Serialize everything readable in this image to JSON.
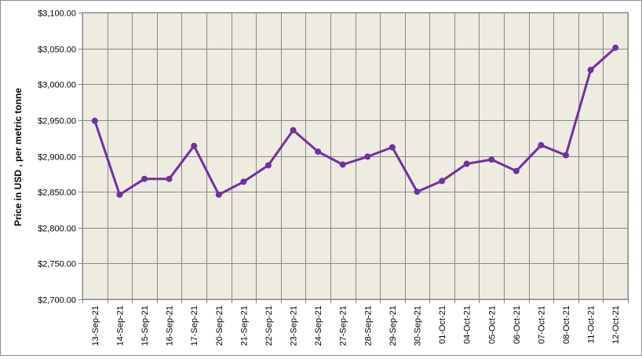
{
  "chart_data": {
    "type": "line",
    "title": "",
    "xlabel": "",
    "ylabel": "Price in USD , per metric tonne",
    "ylim": [
      2700,
      3100
    ],
    "ytick_step": 50,
    "ytick_labels": [
      "$2,700.00",
      "$2,750.00",
      "$2,800.00",
      "$2,850.00",
      "$2,900.00",
      "$2,950.00",
      "$3,000.00",
      "$3,050.00",
      "$3,100.00"
    ],
    "grid": true,
    "legend": "none",
    "categories": [
      "13-Sep-21",
      "14-Sep-21",
      "15-Sep-21",
      "16-Sep-21",
      "17-Sep-21",
      "20-Sep-21",
      "21-Sep-21",
      "22-Sep-21",
      "23-Sep-21",
      "24-Sep-21",
      "27-Sep-21",
      "28-Sep-21",
      "29-Sep-21",
      "30-Sep-21",
      "01-Oct-21",
      "04-Oct-21",
      "05-Oct-21",
      "06-Oct-21",
      "07-Oct-21",
      "08-Oct-21",
      "11-Oct-21",
      "12-Oct-21"
    ],
    "series": [
      {
        "values": [
          2949,
          2846,
          2868,
          2868,
          2914,
          2846,
          2864,
          2887,
          2936,
          2906,
          2888,
          2899,
          2912,
          2850,
          2865,
          2889,
          2895,
          2879,
          2915,
          2901,
          3020,
          3051
        ]
      }
    ],
    "colors": {
      "line": "#7030a0",
      "plot_background": "#eeebe0",
      "grid": "#868686"
    }
  }
}
